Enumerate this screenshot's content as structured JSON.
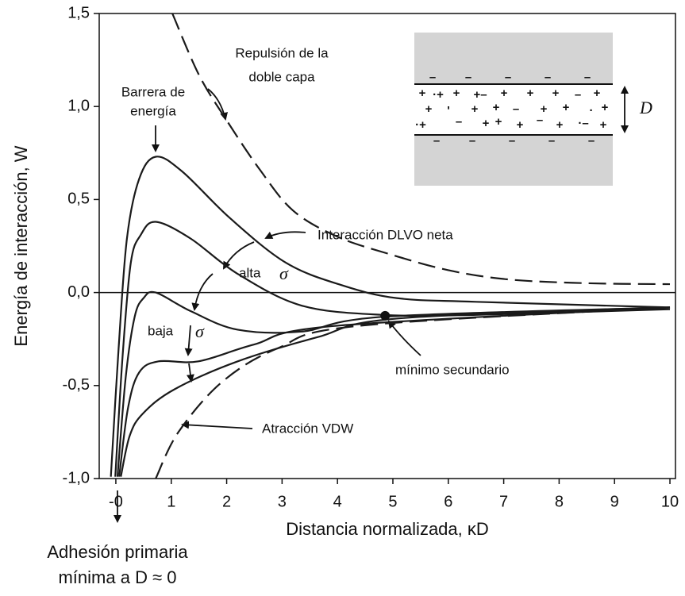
{
  "chart_data": {
    "type": "line",
    "x_label": "Distancia normalizada, κD",
    "y_label": "Energía de interacción, W",
    "xlim": [
      -0.3,
      10.1
    ],
    "ylim": [
      -1.0,
      1.5
    ],
    "xticks": [
      {
        "value": 0,
        "label": "-0"
      },
      1,
      2,
      3,
      4,
      5,
      6,
      7,
      8,
      9,
      10
    ],
    "yticks": [
      {
        "value": -1.0,
        "label": "-1,0"
      },
      {
        "value": -0.5,
        "label": "-0,5"
      },
      {
        "value": 0.0,
        "label": "0,0"
      },
      {
        "value": 0.5,
        "label": "0,5"
      },
      {
        "value": 1.0,
        "label": "1,0"
      },
      {
        "value": 1.5,
        "label": "1,5"
      }
    ],
    "zero_line": true,
    "series": [
      {
        "color": "#1a1a1a",
        "style": "dashed",
        "x": [
          1.02,
          1.5,
          1.99,
          2.6,
          3.2,
          4.0,
          4.9,
          6.0,
          7.1,
          8.5,
          10.0
        ],
        "values": [
          1.5,
          1.17,
          0.93,
          0.66,
          0.44,
          0.3,
          0.21,
          0.12,
          0.07,
          0.05,
          0.045
        ]
      },
      {
        "color": "#1a1a1a",
        "style": "solid",
        "x": [
          -0.09,
          0.05,
          0.2,
          0.42,
          0.72,
          1.2,
          2.06,
          3.07,
          4.07,
          5.07,
          6.5,
          10.0
        ],
        "values": [
          -0.99,
          -0.3,
          0.29,
          0.61,
          0.73,
          0.65,
          0.4,
          0.16,
          0.04,
          -0.03,
          -0.05,
          -0.08
        ]
      },
      {
        "color": "#1a1a1a",
        "style": "solid",
        "x": [
          -0.01,
          0.12,
          0.27,
          0.45,
          0.72,
          1.35,
          2.2,
          3.35,
          4.8,
          6.5,
          10.0
        ],
        "values": [
          -0.99,
          -0.35,
          0.16,
          0.31,
          0.38,
          0.29,
          0.1,
          -0.07,
          -0.12,
          -0.12,
          -0.09
        ]
      },
      {
        "color": "#1a1a1a",
        "style": "solid",
        "x": [
          0.03,
          0.18,
          0.34,
          0.5,
          0.72,
          1.35,
          2.2,
          3.35,
          4.86,
          10.0
        ],
        "values": [
          -0.99,
          -0.45,
          -0.13,
          -0.03,
          0.0,
          -0.1,
          -0.2,
          -0.21,
          -0.13,
          -0.08
        ]
      },
      {
        "color": "#1a1a1a",
        "style": "solid",
        "x": [
          0.06,
          0.22,
          0.42,
          0.77,
          1.49,
          2.49,
          3.93,
          10.0
        ],
        "values": [
          -0.99,
          -0.62,
          -0.43,
          -0.37,
          -0.37,
          -0.28,
          -0.18,
          -0.08
        ]
      },
      {
        "color": "#1a1a1a",
        "style": "solid",
        "x": [
          0.09,
          0.25,
          0.49,
          1.06,
          2.2,
          3.64,
          5.07,
          10.0
        ],
        "values": [
          -0.99,
          -0.77,
          -0.65,
          -0.52,
          -0.37,
          -0.24,
          -0.14,
          -0.08
        ]
      },
      {
        "color": "#1a1a1a",
        "style": "dashed",
        "x": [
          0.72,
          1.13,
          1.92,
          2.92,
          4.36,
          10.0
        ],
        "values": [
          -1.0,
          -0.75,
          -0.48,
          -0.3,
          -0.18,
          -0.08
        ]
      }
    ],
    "highlight": {
      "x": 4.86,
      "y": -0.125
    },
    "annotations": {
      "repulsion": [
        "Repulsión de la",
        "doble capa"
      ],
      "barrier": [
        "Barrera de",
        "energía"
      ],
      "net": "Interacción DLVO neta",
      "high": "alta",
      "low": "baja",
      "sigma": "σ",
      "secondary": "mínimo secundario",
      "vdw": "Atracción VDW",
      "primary": [
        "Adhesión primaria",
        "mínima a D ≈ 0"
      ]
    },
    "inset_label": "D"
  }
}
